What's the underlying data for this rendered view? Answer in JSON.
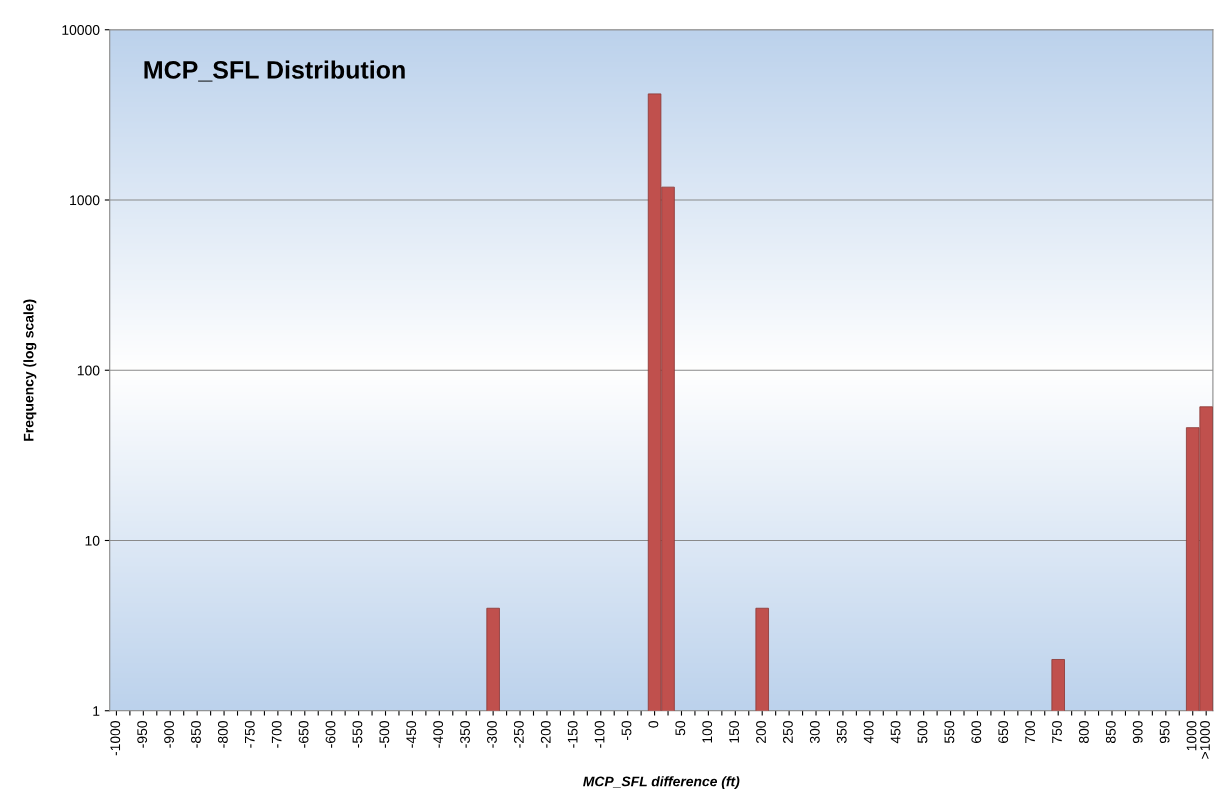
{
  "chart_data": {
    "type": "bar",
    "title": "MCP_SFL Distribution",
    "xlabel": "MCP_SFL difference (ft)",
    "ylabel": "Frequency (log scale)",
    "categories": [
      "-1000",
      null,
      "-950",
      null,
      "-900",
      null,
      "-850",
      null,
      "-800",
      null,
      "-750",
      null,
      "-700",
      null,
      "-650",
      null,
      "-600",
      null,
      "-550",
      null,
      "-500",
      null,
      "-450",
      null,
      "-400",
      null,
      "-350",
      null,
      "-300",
      null,
      "-250",
      null,
      "-200",
      null,
      "-150",
      null,
      "-100",
      null,
      "-50",
      null,
      "0",
      null,
      "50",
      null,
      "100",
      null,
      "150",
      null,
      "200",
      null,
      "250",
      null,
      "300",
      null,
      "350",
      null,
      "400",
      null,
      "450",
      null,
      "500",
      null,
      "550",
      null,
      "600",
      null,
      "650",
      null,
      "700",
      null,
      "750",
      null,
      "800",
      null,
      "850",
      null,
      "900",
      null,
      "950",
      null,
      "1000",
      ">1000"
    ],
    "values": [
      null,
      null,
      null,
      null,
      null,
      null,
      null,
      null,
      null,
      null,
      null,
      null,
      null,
      null,
      null,
      null,
      null,
      null,
      null,
      null,
      null,
      null,
      null,
      null,
      null,
      null,
      null,
      null,
      4,
      null,
      null,
      null,
      null,
      null,
      null,
      null,
      null,
      null,
      null,
      null,
      4200,
      1190,
      null,
      null,
      null,
      null,
      null,
      null,
      4,
      null,
      null,
      null,
      null,
      null,
      null,
      null,
      null,
      null,
      null,
      null,
      null,
      null,
      null,
      null,
      null,
      null,
      null,
      null,
      null,
      null,
      2,
      null,
      null,
      null,
      null,
      null,
      null,
      null,
      null,
      null,
      46,
      61
    ],
    "color": "#c0504d",
    "log": true,
    "ylim": [
      1,
      10000
    ],
    "yticks": [
      1,
      10,
      100,
      1000,
      10000
    ],
    "grid": "y"
  }
}
